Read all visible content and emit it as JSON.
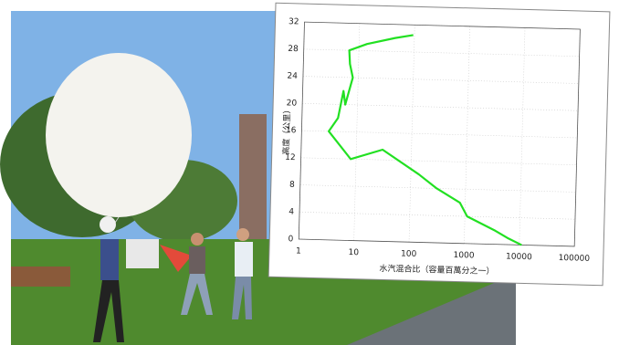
{
  "chart_data": {
    "type": "line",
    "xlabel": "水汽混合比（容量百萬分之一）",
    "ylabel": "高度（公里）",
    "x": [
      11000,
      6000,
      3600,
      1100,
      800,
      300,
      140,
      30,
      8,
      3.1,
      4.5,
      5.5,
      6,
      8,
      7,
      6.7,
      14,
      45,
      95
    ],
    "series": [
      {
        "color": "#22e022",
        "values": [
          0,
          1,
          2,
          4,
          6,
          8,
          10,
          13.5,
          12,
          16,
          18,
          22,
          20,
          24,
          26,
          28,
          29,
          30,
          30.5
        ]
      }
    ],
    "xscale": "log",
    "xlim": [
      1,
      100000
    ],
    "xticks": [
      1,
      10,
      100,
      1000,
      10000,
      100000
    ],
    "ylim": [
      0,
      32
    ],
    "yticks": [
      0,
      4,
      8,
      12,
      16,
      20,
      24,
      28,
      32
    ],
    "grid": true
  }
}
